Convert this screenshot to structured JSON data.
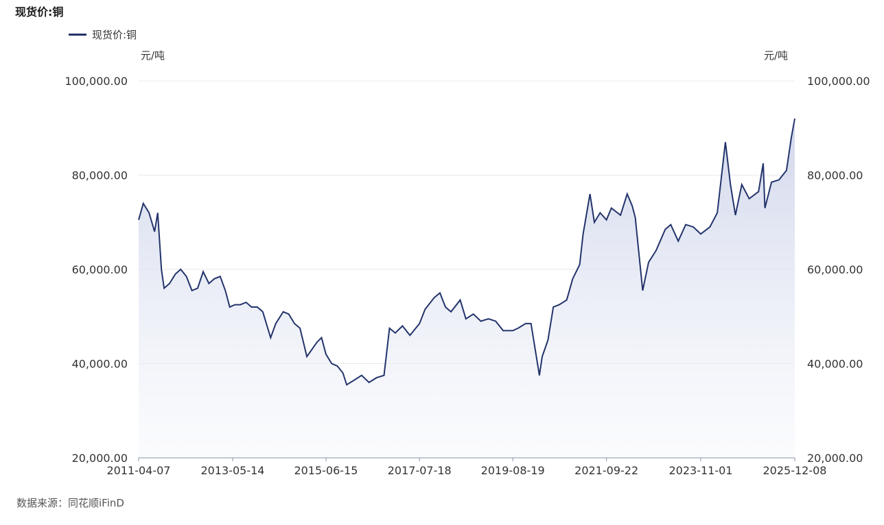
{
  "title": "现货价:铜",
  "legend_label": "现货价:铜",
  "source": "数据来源：同花顺iFinD",
  "colors": {
    "line": "#22336b",
    "area_top": "#c9d0e8",
    "grid": "#e8e8ef"
  },
  "chart_data": {
    "type": "area",
    "title": "现货价:铜",
    "y_unit_left": "元/吨",
    "y_unit_right": "元/吨",
    "ylim": [
      20000,
      100000
    ],
    "y_ticks": [
      "20,000.00",
      "40,000.00",
      "60,000.00",
      "80,000.00",
      "100,000.00"
    ],
    "y_tick_values": [
      20000,
      40000,
      60000,
      80000,
      100000
    ],
    "x_tick_labels": [
      "2011-04-07",
      "2013-05-14",
      "2015-06-15",
      "2017-07-18",
      "2019-08-19",
      "2021-09-22",
      "2023-11-01",
      "2025-12-08"
    ],
    "x_tick_dates": [
      "2011-04-07",
      "2013-05-14",
      "2015-06-15",
      "2017-07-18",
      "2019-08-19",
      "2021-09-22",
      "2023-11-01",
      "2025-12-08"
    ],
    "grid": true,
    "series": [
      {
        "name": "现货价:铜",
        "points": [
          [
            "2011-04-07",
            70500
          ],
          [
            "2011-05-15",
            74000
          ],
          [
            "2011-07-01",
            72000
          ],
          [
            "2011-08-15",
            68000
          ],
          [
            "2011-09-10",
            72000
          ],
          [
            "2011-10-10",
            60000
          ],
          [
            "2011-11-01",
            56000
          ],
          [
            "2011-12-15",
            57000
          ],
          [
            "2012-02-01",
            59000
          ],
          [
            "2012-03-15",
            60000
          ],
          [
            "2012-05-01",
            58500
          ],
          [
            "2012-06-15",
            55500
          ],
          [
            "2012-08-01",
            56000
          ],
          [
            "2012-09-15",
            59500
          ],
          [
            "2012-11-01",
            57000
          ],
          [
            "2012-12-15",
            58000
          ],
          [
            "2013-02-01",
            58500
          ],
          [
            "2013-03-15",
            55500
          ],
          [
            "2013-04-20",
            52000
          ],
          [
            "2013-06-01",
            52500
          ],
          [
            "2013-07-15",
            52500
          ],
          [
            "2013-09-01",
            53000
          ],
          [
            "2013-10-15",
            52000
          ],
          [
            "2013-12-01",
            52000
          ],
          [
            "2014-01-15",
            51000
          ],
          [
            "2014-03-20",
            45500
          ],
          [
            "2014-05-01",
            48500
          ],
          [
            "2014-07-01",
            51000
          ],
          [
            "2014-08-15",
            50500
          ],
          [
            "2014-10-01",
            48500
          ],
          [
            "2014-11-15",
            47500
          ],
          [
            "2015-01-10",
            41500
          ],
          [
            "2015-02-20",
            43000
          ],
          [
            "2015-04-01",
            44500
          ],
          [
            "2015-05-10",
            45500
          ],
          [
            "2015-06-15",
            42000
          ],
          [
            "2015-08-01",
            40000
          ],
          [
            "2015-09-15",
            39500
          ],
          [
            "2015-11-01",
            38000
          ],
          [
            "2015-12-01",
            35500
          ],
          [
            "2016-02-01",
            36500
          ],
          [
            "2016-04-01",
            37500
          ],
          [
            "2016-06-01",
            36000
          ],
          [
            "2016-08-01",
            37000
          ],
          [
            "2016-10-01",
            37500
          ],
          [
            "2016-11-15",
            47500
          ],
          [
            "2017-01-01",
            46500
          ],
          [
            "2017-03-01",
            48000
          ],
          [
            "2017-05-01",
            46000
          ],
          [
            "2017-07-18",
            48500
          ],
          [
            "2017-09-01",
            51500
          ],
          [
            "2017-11-15",
            54000
          ],
          [
            "2018-01-01",
            55000
          ],
          [
            "2018-02-15",
            52000
          ],
          [
            "2018-04-01",
            51000
          ],
          [
            "2018-06-15",
            53500
          ],
          [
            "2018-08-01",
            49500
          ],
          [
            "2018-10-01",
            50500
          ],
          [
            "2018-12-01",
            49000
          ],
          [
            "2019-02-01",
            49500
          ],
          [
            "2019-04-01",
            49000
          ],
          [
            "2019-06-01",
            47000
          ],
          [
            "2019-08-19",
            47000
          ],
          [
            "2019-10-01",
            47500
          ],
          [
            "2019-12-01",
            48500
          ],
          [
            "2020-01-15",
            48500
          ],
          [
            "2020-03-23",
            37500
          ],
          [
            "2020-04-15",
            41500
          ],
          [
            "2020-06-01",
            45000
          ],
          [
            "2020-07-15",
            52000
          ],
          [
            "2020-09-01",
            52500
          ],
          [
            "2020-11-01",
            53500
          ],
          [
            "2020-12-20",
            58000
          ],
          [
            "2021-02-15",
            61000
          ],
          [
            "2021-03-15",
            67500
          ],
          [
            "2021-05-10",
            76000
          ],
          [
            "2021-06-15",
            70000
          ],
          [
            "2021-08-01",
            72000
          ],
          [
            "2021-09-22",
            70500
          ],
          [
            "2021-11-01",
            73000
          ],
          [
            "2022-01-15",
            71500
          ],
          [
            "2022-03-10",
            76000
          ],
          [
            "2022-04-20",
            73500
          ],
          [
            "2022-05-15",
            71000
          ],
          [
            "2022-07-15",
            55500
          ],
          [
            "2022-09-01",
            61500
          ],
          [
            "2022-11-01",
            64000
          ],
          [
            "2023-01-15",
            68500
          ],
          [
            "2023-03-01",
            69500
          ],
          [
            "2023-05-01",
            66000
          ],
          [
            "2023-07-01",
            69500
          ],
          [
            "2023-09-01",
            69000
          ],
          [
            "2023-11-01",
            67500
          ],
          [
            "2024-01-15",
            69000
          ],
          [
            "2024-03-15",
            72000
          ],
          [
            "2024-05-20",
            87000
          ],
          [
            "2024-07-01",
            78000
          ],
          [
            "2024-08-10",
            71500
          ],
          [
            "2024-10-01",
            78000
          ],
          [
            "2024-12-01",
            75000
          ],
          [
            "2025-02-15",
            76500
          ],
          [
            "2025-03-25",
            82500
          ],
          [
            "2025-04-08",
            73000
          ],
          [
            "2025-06-01",
            78500
          ],
          [
            "2025-08-01",
            79000
          ],
          [
            "2025-10-01",
            81000
          ],
          [
            "2025-11-10",
            88000
          ],
          [
            "2025-12-08",
            92000
          ]
        ]
      }
    ]
  }
}
